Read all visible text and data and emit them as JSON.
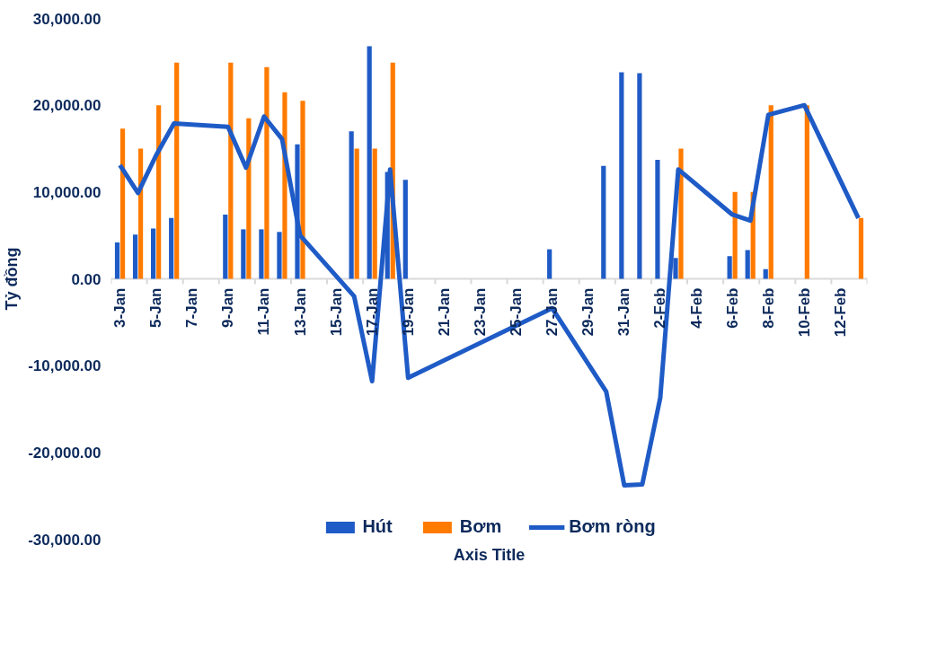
{
  "chart_data": {
    "type": "bar",
    "xlabel": "Axis Title",
    "ylabel": "Tỷ đồng",
    "categories": [
      "3-Jan",
      null,
      "5-Jan",
      null,
      "7-Jan",
      null,
      "9-Jan",
      null,
      "11-Jan",
      null,
      "13-Jan",
      null,
      "15-Jan",
      null,
      "17-Jan",
      null,
      "19-Jan",
      null,
      "21-Jan",
      null,
      "23-Jan",
      null,
      "25-Jan",
      null,
      "27-Jan",
      null,
      "29-Jan",
      null,
      "31-Jan",
      null,
      "2-Feb",
      null,
      "4-Feb",
      null,
      "6-Feb",
      null,
      "8-Feb",
      null,
      "10-Feb",
      null,
      "12-Feb",
      null
    ],
    "series": [
      {
        "name": "Hút",
        "type": "bar",
        "color": "#1f5bc6",
        "values": [
          4200,
          5100,
          5800,
          7000,
          null,
          null,
          7400,
          5700,
          5700,
          5400,
          15500,
          null,
          null,
          17000,
          26800,
          12300,
          11400,
          null,
          null,
          null,
          null,
          null,
          null,
          null,
          3400,
          null,
          null,
          13000,
          23800,
          23700,
          13700,
          2400,
          null,
          null,
          2600,
          3300,
          1100,
          null,
          null,
          null,
          null,
          null
        ]
      },
      {
        "name": "Bơm",
        "type": "bar",
        "color": "#ff7b00",
        "values": [
          17300,
          15000,
          20000,
          24900,
          null,
          null,
          24900,
          18500,
          24400,
          21500,
          20500,
          null,
          null,
          15000,
          15000,
          24900,
          null,
          null,
          null,
          null,
          null,
          null,
          null,
          null,
          null,
          null,
          null,
          null,
          null,
          null,
          null,
          15000,
          null,
          null,
          10000,
          10000,
          20000,
          null,
          20000,
          null,
          null,
          7000
        ]
      },
      {
        "name": "Bơm ròng",
        "type": "line",
        "color": "#1f5bc6",
        "values": [
          13100,
          9900,
          14200,
          17900,
          null,
          null,
          17500,
          12800,
          18700,
          16100,
          5000,
          null,
          null,
          -2000,
          -11800,
          12600,
          -11400,
          null,
          null,
          null,
          null,
          null,
          null,
          null,
          -3400,
          null,
          null,
          -13000,
          -23800,
          -23700,
          -13700,
          12600,
          null,
          null,
          7400,
          6700,
          18900,
          null,
          20000,
          null,
          null,
          7000
        ]
      }
    ],
    "ylim": [
      -30000,
      30000
    ],
    "yticks": [
      {
        "value": -30000,
        "label": "-30,000.00"
      },
      {
        "value": -20000,
        "label": "-20,000.00"
      },
      {
        "value": -10000,
        "label": "-10,000.00"
      },
      {
        "value": 0,
        "label": "0.00"
      },
      {
        "value": 10000,
        "label": "10,000.00"
      },
      {
        "value": 20000,
        "label": "20,000.00"
      },
      {
        "value": 30000,
        "label": "30,000.00"
      }
    ],
    "grid": false,
    "legend": "bottom",
    "line_style": "solid",
    "marker": "none"
  }
}
